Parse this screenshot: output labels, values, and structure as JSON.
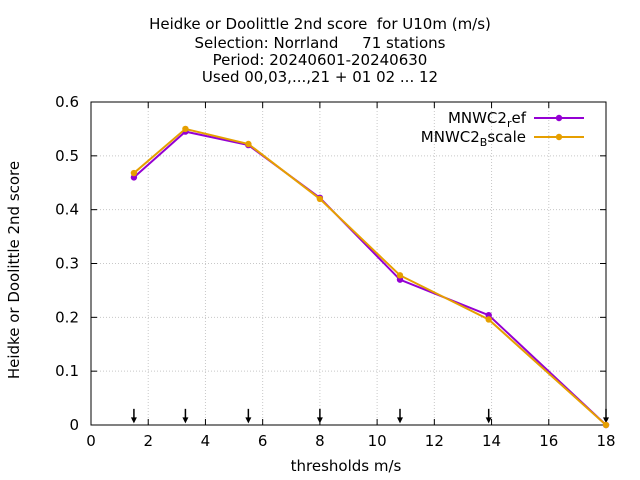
{
  "chart_data": {
    "type": "line",
    "title_lines": [
      "Heidke or Doolittle 2nd score  for U10m (m/s)",
      "Selection: Norrland     71 stations",
      "Period: 20240601-20240630",
      "Used 00,03,...,21 + 01 02 ... 12"
    ],
    "xlabel": "thresholds m/s",
    "ylabel": "Heidke or Doolittle 2nd score",
    "xlim": [
      0,
      18
    ],
    "ylim": [
      0,
      0.6
    ],
    "xticks": [
      0,
      2,
      4,
      6,
      8,
      10,
      12,
      14,
      16,
      18
    ],
    "yticks": [
      0,
      0.1,
      0.2,
      0.3,
      0.4,
      0.5,
      0.6
    ],
    "grid": true,
    "legend_position": "top-right",
    "threshold_markers": [
      1.5,
      3.3,
      5.5,
      8.0,
      10.8,
      13.9,
      18.0
    ],
    "series": [
      {
        "name": "MNWC2",
        "name_sub": "r",
        "name_rest": "ef",
        "color": "#9400d3",
        "x": [
          1.5,
          3.3,
          5.5,
          8.0,
          10.8,
          13.9,
          18.0
        ],
        "y": [
          0.46,
          0.545,
          0.52,
          0.422,
          0.27,
          0.204,
          0.0
        ]
      },
      {
        "name": "MNWC2",
        "name_sub": "B",
        "name_rest": "scale",
        "color": "#e69f00",
        "x": [
          1.5,
          3.3,
          5.5,
          8.0,
          10.8,
          13.9,
          18.0
        ],
        "y": [
          0.468,
          0.55,
          0.522,
          0.42,
          0.278,
          0.196,
          0.0
        ]
      }
    ]
  }
}
